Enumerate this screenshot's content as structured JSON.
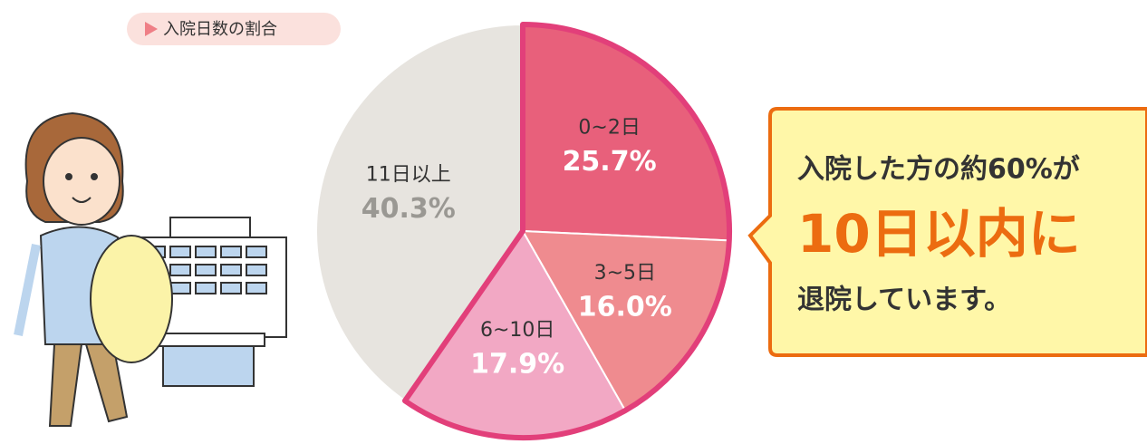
{
  "chart_data": {
    "type": "pie",
    "title": "入院日数の割合",
    "categories": [
      "0~2日",
      "3~5日",
      "6~10日",
      "11日以上"
    ],
    "values": [
      25.7,
      16.0,
      17.9,
      40.3
    ],
    "value_labels": [
      "25.7%",
      "16.0%",
      "17.9%",
      "40.3%"
    ],
    "colors": [
      "#e8607b",
      "#ef8b8f",
      "#f2a8c4",
      "#e7e4df"
    ],
    "label_colors": [
      "#ffffff",
      "#ffffff",
      "#ffffff",
      "#9a9893"
    ],
    "highlight_color": "#e23f7a",
    "callout": {
      "lines": [
        "入院した方の約60%が",
        "10日以内に",
        "退院しています。"
      ]
    }
  }
}
